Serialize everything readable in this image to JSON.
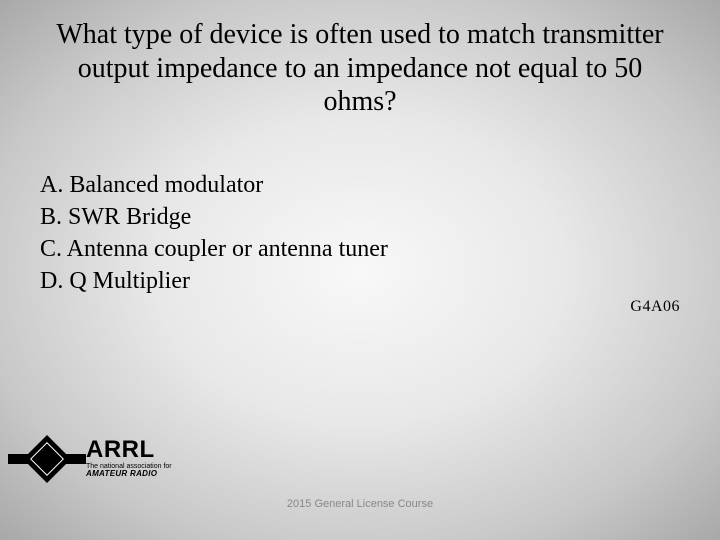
{
  "slide": {
    "background": {
      "type": "radial-gradient",
      "center_color": "#f8f8f8",
      "mid_color": "#e8e8e8",
      "outer_color": "#a8a8a8"
    },
    "question_text": "What type of device is often used to match transmitter output impedance to an impedance not equal to 50 ohms?",
    "question_fontsize": 28,
    "question_font": "Times New Roman",
    "options": [
      {
        "letter": "A",
        "text": "Balanced modulator"
      },
      {
        "letter": "B",
        "text": "SWR Bridge"
      },
      {
        "letter": "C",
        "text": "Antenna coupler or antenna tuner"
      },
      {
        "letter": "D",
        "text": "Q Multiplier"
      }
    ],
    "options_fontsize": 24,
    "question_code": "G4A06",
    "code_fontsize": 16,
    "logo": {
      "main": "ARRL",
      "tagline_line1": "The national association for",
      "tagline_line2": "AMATEUR RADIO",
      "diamond_color": "#000000"
    },
    "footer_text": "2015 General License Course",
    "footer_fontsize": 11,
    "footer_color": "#888888"
  }
}
